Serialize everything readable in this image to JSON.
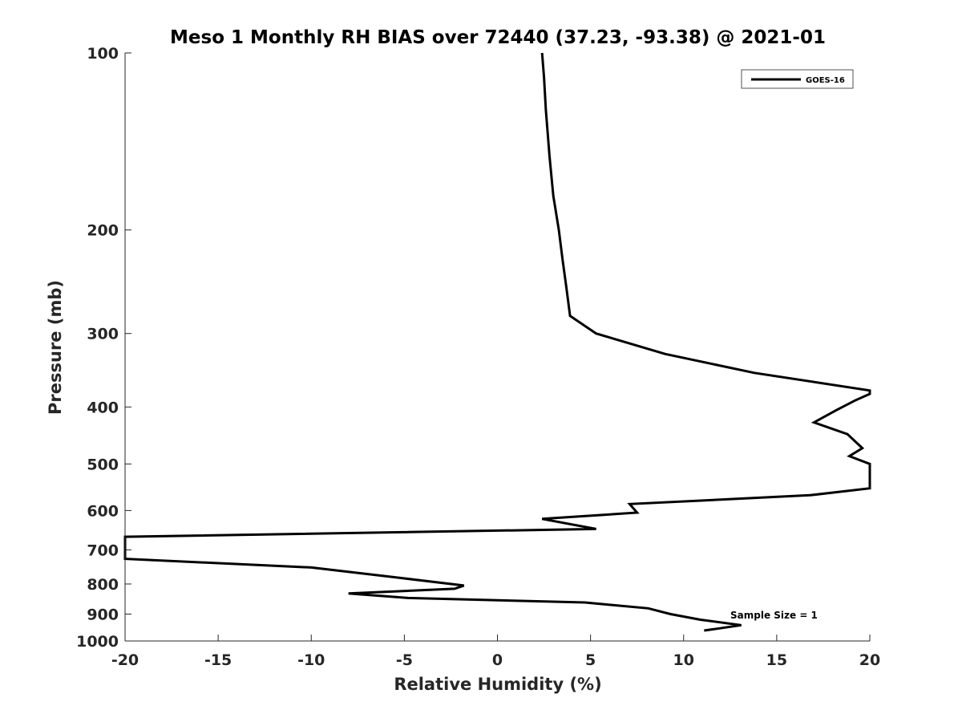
{
  "chart_data": {
    "type": "line",
    "title": "Meso 1 Monthly RH BIAS over 72440 (37.23, -93.38) @ 2021-01",
    "xlabel": "Relative Humidity (%)",
    "ylabel": "Pressure (mb)",
    "xlim": [
      -20,
      20
    ],
    "ylim": [
      100,
      1000
    ],
    "y_scale": "log",
    "y_reversed": true,
    "x_ticks": [
      -20,
      -15,
      -10,
      -5,
      0,
      5,
      10,
      15,
      20
    ],
    "y_ticks": [
      100,
      200,
      300,
      400,
      500,
      600,
      700,
      800,
      900,
      1000
    ],
    "grid": false,
    "legend_position": "top-right",
    "annotation": "Sample Size = 1",
    "series": [
      {
        "name": "GOES-16",
        "color": "#000000",
        "x": [
          2.4,
          2.5,
          2.6,
          2.8,
          3.0,
          3.3,
          3.5,
          3.7,
          3.8,
          3.9,
          5.3,
          9.0,
          13.8,
          20.0,
          20.0,
          19.2,
          18.2,
          17.0,
          18.8,
          19.6,
          18.9,
          20.0,
          20.0,
          16.8,
          7.1,
          7.5,
          2.4,
          5.3,
          -20.0,
          -20.0,
          -10.0,
          -5.4,
          -1.8,
          -2.3,
          -8.0,
          -4.8,
          4.7,
          8.1,
          9.3,
          10.9,
          13.1,
          11.1
        ],
        "y": [
          100,
          110,
          125,
          150,
          175,
          200,
          225,
          250,
          265,
          280,
          300,
          325,
          350,
          375,
          380,
          390,
          405,
          425,
          445,
          470,
          485,
          500,
          550,
          565,
          585,
          605,
          620,
          645,
          665,
          725,
          750,
          780,
          805,
          815,
          830,
          845,
          860,
          880,
          900,
          920,
          940,
          960
        ]
      }
    ]
  }
}
